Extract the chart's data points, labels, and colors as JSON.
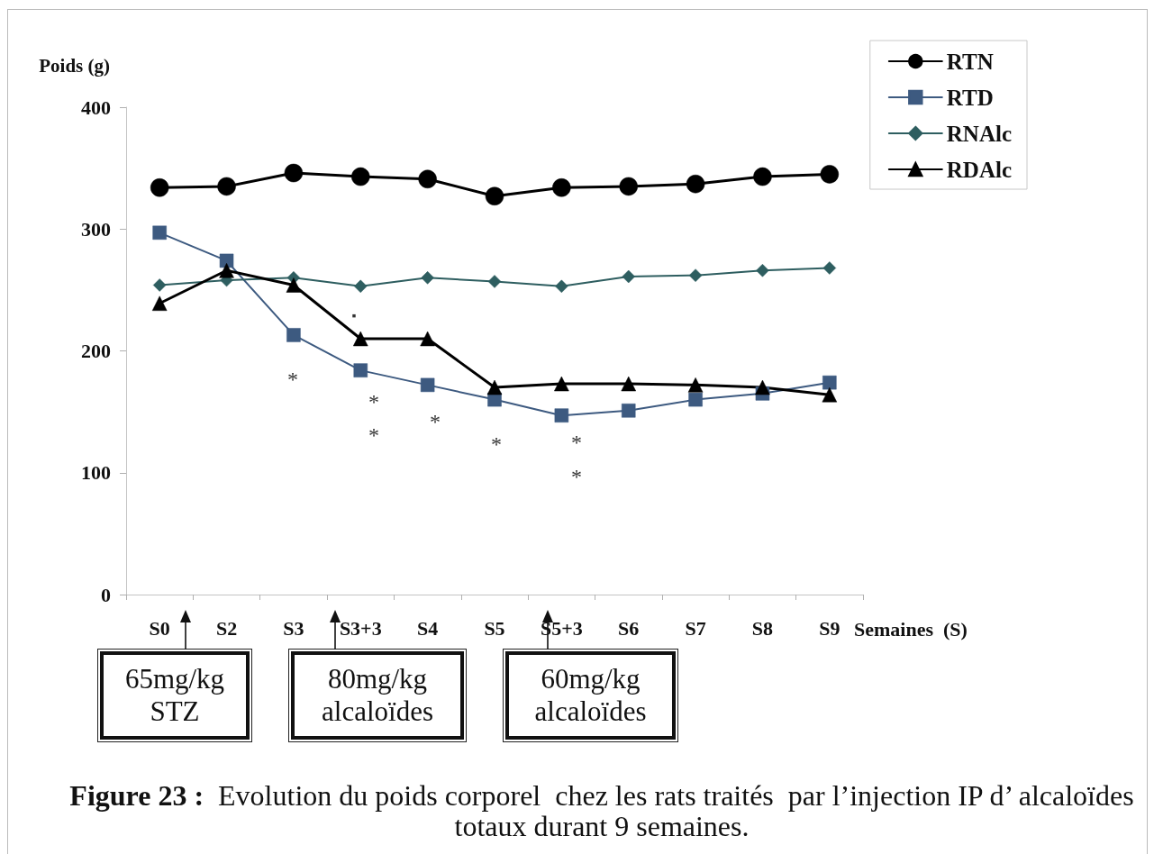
{
  "chart_data": {
    "type": "line",
    "xlabel": "Semaines  (S)",
    "ylabel": "Poids (g)",
    "categories": [
      "S0",
      "S2",
      "S3",
      "S3+3",
      "S4",
      "S5",
      "S5+3",
      "S6",
      "S7",
      "S8",
      "S9"
    ],
    "series": [
      {
        "name": "RTN",
        "color": "#000000",
        "marker": "circle",
        "values": [
          334,
          335,
          346,
          343,
          341,
          327,
          334,
          335,
          337,
          343,
          345
        ]
      },
      {
        "name": "RTD",
        "color": "#3d5a80",
        "marker": "square",
        "values": [
          297,
          274,
          213,
          184,
          172,
          160,
          147,
          151,
          160,
          165,
          174
        ]
      },
      {
        "name": "RNAlc",
        "color": "#2e5e60",
        "marker": "diamond",
        "values": [
          254,
          258,
          260,
          253,
          260,
          257,
          253,
          261,
          262,
          266,
          268
        ]
      },
      {
        "name": "RDAlc",
        "color": "#000000",
        "marker": "triangle",
        "values": [
          239,
          266,
          254,
          210,
          210,
          170,
          173,
          173,
          172,
          170,
          164
        ]
      }
    ],
    "ylim": [
      0,
      400
    ],
    "yticks": [
      0,
      100,
      200,
      300,
      400
    ],
    "grid": false,
    "legend": "top right",
    "line_style": "solid",
    "annotations": [
      "*",
      "*",
      "*",
      "*",
      "*",
      "*",
      "*",
      "▪",
      "65mg/kg\nSTZ",
      "80mg/kg\nalcaloïdes",
      "60mg/kg\nalcaloïdes",
      "Figure 23 :  Evolution du poids corporel  chez les rats traités  par l’injection IP d’ alcaloïdes totaux durant 9 semaines."
    ]
  }
}
